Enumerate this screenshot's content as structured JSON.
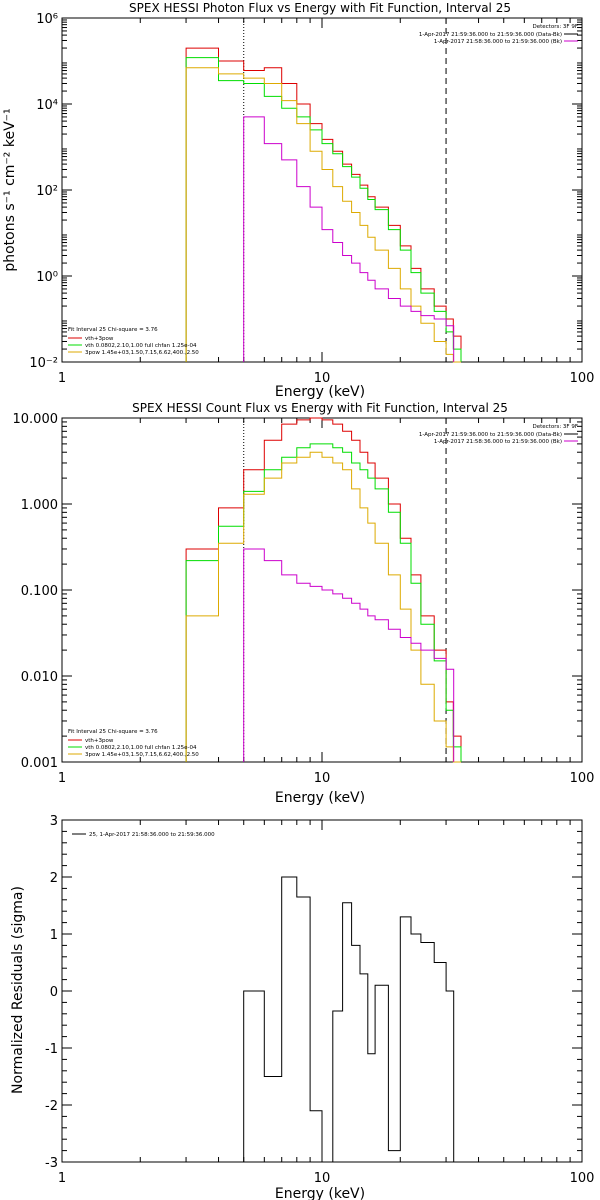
{
  "chart_data": [
    {
      "type": "line",
      "title": "SPEX HESSI Photon Flux vs Energy with Fit Function, Interval 25",
      "xlabel": "Energy (keV)",
      "ylabel": "photons s⁻¹ cm⁻² keV⁻¹",
      "xscale": "log",
      "yscale": "log",
      "xlim": [
        1,
        100
      ],
      "ylim": [
        0.01,
        1000000
      ],
      "xticks": [
        "1",
        "10",
        "100"
      ],
      "yticks": [
        "10⁻²",
        "10⁰",
        "10²",
        "10⁴",
        "10⁶"
      ],
      "legend_top": {
        "header": "Detectors: 3F 9F",
        "entries": [
          {
            "label": "1-Apr-2017 21:59:36.000 to 21:59:36.000 (Data-Bk)",
            "color": "#000000"
          },
          {
            "label": "1-Apr-2017 21:58:36.000 to 21:59:36.000 (Bk)",
            "color": "#cc00cc"
          }
        ]
      },
      "legend_bottom": {
        "header": "Fit Interval 25   Chi-square = 3.76",
        "entries": [
          {
            "label": "vth+3pow",
            "color": "#dd0000"
          },
          {
            "label": "vth 0.0802,2.10,1.00  full chfan 1.25e-04",
            "color": "#00dd00"
          },
          {
            "label": "3pow 1.45e+03,1.50,7.15,6.62,400.,2.50",
            "color": "#ddaa00"
          }
        ]
      },
      "markers": [
        {
          "x": 5,
          "style": "dotted"
        },
        {
          "x": 30,
          "style": "dashed"
        }
      ],
      "series": [
        {
          "name": "vth+3pow",
          "color": "#dd0000",
          "x": [
            3,
            4,
            5,
            6,
            7,
            8,
            9,
            10,
            11,
            12,
            13,
            14,
            15,
            16,
            18,
            20,
            22,
            24,
            27,
            30,
            32
          ],
          "y": [
            200000,
            100000,
            60000,
            70000,
            30000,
            10000,
            3500,
            1500,
            800,
            400,
            230,
            130,
            70,
            40,
            15,
            5,
            1.5,
            0.5,
            0.2,
            0.1,
            0.04
          ]
        },
        {
          "name": "vth 0.0802,2.10,1.00  full chfan 1.25e-04",
          "color": "#00dd00",
          "x": [
            3,
            4,
            5,
            6,
            7,
            8,
            9,
            10,
            11,
            12,
            13,
            14,
            15,
            16,
            18,
            20,
            22,
            24,
            27,
            30,
            32
          ],
          "y": [
            120000,
            35000,
            30000,
            15000,
            8000,
            5000,
            2500,
            1200,
            700,
            350,
            200,
            110,
            60,
            35,
            12,
            4,
            1.2,
            0.4,
            0.15,
            0.05,
            0.02
          ]
        },
        {
          "name": "3pow 1.45e+03,1.50,7.15,6.62,400.,2.50",
          "color": "#ddaa00",
          "x": [
            3,
            4,
            5,
            6,
            7,
            8,
            9,
            10,
            11,
            12,
            13,
            14,
            15,
            16,
            18,
            20,
            22,
            24,
            27,
            30,
            32
          ],
          "y": [
            70000,
            50000,
            40000,
            30000,
            12000,
            3500,
            800,
            300,
            120,
            55,
            30,
            15,
            8,
            4,
            1.5,
            0.5,
            0.2,
            0.08,
            0.03,
            0.015,
            0.01
          ]
        },
        {
          "name": "1-Apr-2017 21:58:36.000 to 21:59:36.000 (Bk)",
          "color": "#cc00cc",
          "x": [
            5,
            6,
            7,
            8,
            9,
            10,
            11,
            12,
            13,
            14,
            15,
            16,
            18,
            20,
            22,
            24,
            27,
            30
          ],
          "y": [
            5000,
            1200,
            500,
            120,
            40,
            12,
            6,
            3,
            2,
            1.2,
            0.8,
            0.5,
            0.3,
            0.2,
            0.15,
            0.12,
            0.1,
            0.07
          ]
        }
      ]
    },
    {
      "type": "line",
      "title": "SPEX HESSI Count Flux vs Energy with Fit Function, Interval 25",
      "xlabel": "Energy (keV)",
      "ylabel": "",
      "xscale": "log",
      "yscale": "log",
      "xlim": [
        1,
        100
      ],
      "ylim": [
        0.001,
        10
      ],
      "xticks": [
        "1",
        "10",
        "100"
      ],
      "yticks": [
        "0.001",
        "0.010",
        "0.100",
        "1.000",
        "10.000"
      ],
      "legend_top": {
        "header": "Detectors: 3F 9F",
        "entries": [
          {
            "label": "1-Apr-2017 21:59:36.000 to 21:59:36.000 (Data-Bk)",
            "color": "#000000"
          },
          {
            "label": "1-Apr-2017 21:58:36.000 to 21:59:36.000 (Bk)",
            "color": "#cc00cc"
          }
        ]
      },
      "legend_bottom": {
        "header": "Fit Interval 25   Chi-square = 3.76",
        "entries": [
          {
            "label": "vth+3pow",
            "color": "#dd0000"
          },
          {
            "label": "vth 0.0802,2.10,1.00  full chfan 1.25e-04",
            "color": "#00dd00"
          },
          {
            "label": "3pow 1.45e+03,1.50,7.15,6.62,400.,2.50",
            "color": "#ddaa00"
          }
        ]
      },
      "markers": [
        {
          "x": 5,
          "style": "dotted"
        },
        {
          "x": 30,
          "style": "dashed"
        }
      ],
      "series": [
        {
          "name": "vth+3pow",
          "color": "#dd0000",
          "x": [
            3,
            4,
            5,
            6,
            7,
            8,
            9,
            10,
            11,
            12,
            13,
            14,
            15,
            16,
            18,
            20,
            22,
            24,
            27,
            30,
            32
          ],
          "y": [
            0.3,
            0.9,
            2.5,
            5.5,
            8.5,
            9.5,
            10,
            9.5,
            8.5,
            7,
            5.5,
            4,
            3,
            2,
            1,
            0.4,
            0.15,
            0.05,
            0.02,
            0.005,
            0.002
          ]
        },
        {
          "name": "vth 0.0802,2.10,1.00  full chfan 1.25e-04",
          "color": "#00dd00",
          "x": [
            3,
            4,
            5,
            6,
            7,
            8,
            9,
            10,
            11,
            12,
            13,
            14,
            15,
            16,
            18,
            20,
            22,
            24,
            27,
            30,
            32
          ],
          "y": [
            0.22,
            0.55,
            1.4,
            2.5,
            3.5,
            4.5,
            5,
            5,
            4.5,
            4,
            3,
            2.5,
            2,
            1.5,
            0.8,
            0.35,
            0.12,
            0.04,
            0.015,
            0.004,
            0.0015
          ]
        },
        {
          "name": "3pow 1.45e+03,1.50,7.15,6.62,400.,2.50",
          "color": "#ddaa00",
          "x": [
            3,
            4,
            5,
            6,
            7,
            8,
            9,
            10,
            11,
            12,
            13,
            14,
            15,
            16,
            18,
            20,
            22,
            24,
            27,
            30,
            32
          ],
          "y": [
            0.05,
            0.35,
            1.3,
            2,
            3,
            3.5,
            4,
            3.5,
            3,
            2.5,
            1.5,
            0.9,
            0.6,
            0.35,
            0.15,
            0.06,
            0.02,
            0.008,
            0.003,
            0.0015,
            0.0008
          ]
        },
        {
          "name": "1-Apr-2017 21:58:36.000 to 21:59:36.000 (Bk)",
          "color": "#cc00cc",
          "x": [
            5,
            6,
            7,
            8,
            9,
            10,
            11,
            12,
            13,
            14,
            15,
            16,
            18,
            20,
            22,
            24,
            27,
            30
          ],
          "y": [
            0.3,
            0.22,
            0.15,
            0.12,
            0.11,
            0.1,
            0.09,
            0.08,
            0.07,
            0.06,
            0.05,
            0.045,
            0.035,
            0.028,
            0.024,
            0.02,
            0.016,
            0.012
          ]
        }
      ]
    },
    {
      "type": "line",
      "title": "",
      "xlabel": "Energy (keV)",
      "ylabel": "Normalized Residuals (sigma)",
      "xscale": "log",
      "yscale": "linear",
      "xlim": [
        1,
        100
      ],
      "ylim": [
        -3,
        3
      ],
      "xticks": [
        "1",
        "10",
        "100"
      ],
      "yticks": [
        "-3",
        "-2",
        "-1",
        "0",
        "1",
        "2",
        "3"
      ],
      "legend": {
        "entries": [
          {
            "label": "25,  1-Apr-2017 21:58:36.000 to 21:59:36.000",
            "color": "#000000"
          }
        ]
      },
      "series": [
        {
          "name": "25,  1-Apr-2017 21:58:36.000 to 21:59:36.000",
          "color": "#000000",
          "x": [
            5,
            6,
            7,
            8,
            9,
            10,
            11,
            12,
            13,
            14,
            15,
            16,
            18,
            20,
            22,
            24,
            27,
            30
          ],
          "y": [
            0,
            -1.5,
            2,
            1.65,
            -2.1,
            -3.1,
            -0.35,
            1.55,
            0.8,
            0.3,
            -1.1,
            0.1,
            -2.8,
            1.3,
            1,
            0.85,
            0.5,
            0
          ]
        }
      ]
    }
  ]
}
